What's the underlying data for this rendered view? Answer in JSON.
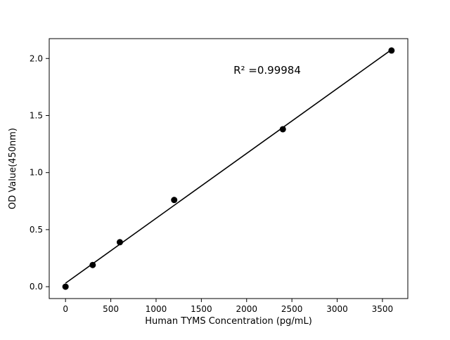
{
  "chart_data": {
    "type": "scatter",
    "title": "",
    "xlabel": "Human TYMS Concentration (pg/mL)",
    "ylabel": "OD Value(450nm)",
    "annotation": "R² =0.99984",
    "x": [
      0,
      300,
      600,
      1200,
      2400,
      3600
    ],
    "y": [
      0.0,
      0.19,
      0.39,
      0.76,
      1.38,
      2.07
    ],
    "xticks": [
      0,
      500,
      1000,
      1500,
      2000,
      2500,
      3000,
      3500
    ],
    "yticks": [
      0.0,
      0.5,
      1.0,
      1.5,
      2.0
    ],
    "xlim": [
      -180,
      3780
    ],
    "ylim": [
      -0.104,
      2.174
    ],
    "fit_line": true,
    "legend": "none",
    "grid": false,
    "marker_color": "#000000",
    "line_color": "#000000"
  }
}
